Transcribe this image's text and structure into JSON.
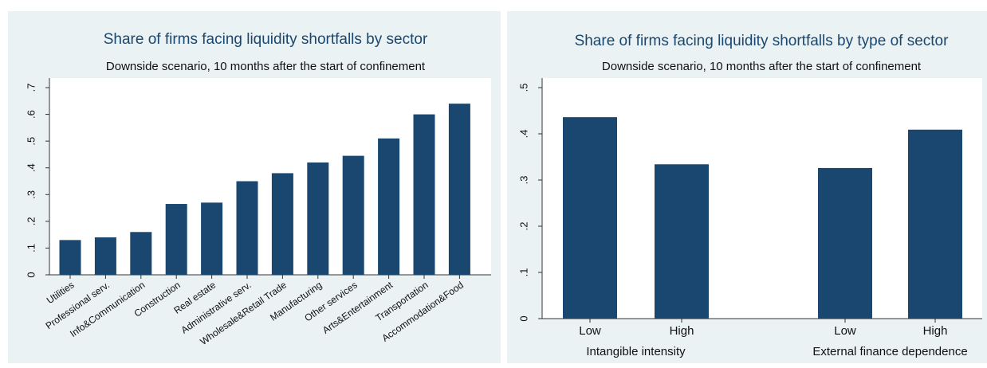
{
  "chart_data": [
    {
      "type": "bar",
      "title": "Share of firms facing liquidity shortfalls by sector",
      "subtitle": "Downside scenario, 10 months after the start of confinement",
      "categories": [
        "Utilities",
        "Professional serv.",
        "Info&Communication",
        "Construction",
        "Real estate",
        "Administrative serv.",
        "Wholesale&Retail Trade",
        "Manufacturing",
        "Other services",
        "Arts&Entertainment",
        "Transportation",
        "Accommodation&Food"
      ],
      "values": [
        0.13,
        0.14,
        0.16,
        0.265,
        0.27,
        0.35,
        0.38,
        0.42,
        0.445,
        0.51,
        0.6,
        0.64
      ],
      "color": "#1a476f",
      "ylim": [
        0,
        0.7
      ],
      "yticks": [
        0,
        {
          "value": 0.1,
          "label": ".1"
        },
        {
          "value": 0.2,
          "label": ".2"
        },
        {
          "value": 0.3,
          "label": ".3"
        },
        {
          "value": 0.4,
          "label": ".4"
        },
        {
          "value": 0.5,
          "label": ".5"
        },
        {
          "value": 0.6,
          "label": ".6"
        },
        {
          "value": 0.7,
          "label": ".7"
        }
      ],
      "grid": false
    },
    {
      "type": "bar",
      "title": "Share of firms facing liquidity shortfalls by type of sector",
      "subtitle": "Downside scenario, 10 months after the start of confinement",
      "categories": [
        "Low",
        "High",
        "Low",
        "High"
      ],
      "group_labels": [
        "Intangible intensity",
        "External finance dependence"
      ],
      "values": [
        0.436,
        0.334,
        0.326,
        0.409
      ],
      "color": "#1a476f",
      "ylim": [
        0,
        0.5
      ],
      "yticks": [
        0,
        {
          "value": 0.1,
          "label": ".1"
        },
        {
          "value": 0.2,
          "label": ".2"
        },
        {
          "value": 0.3,
          "label": ".3"
        },
        {
          "value": 0.4,
          "label": ".4"
        },
        {
          "value": 0.5,
          "label": ".5"
        }
      ],
      "grid": false
    }
  ]
}
